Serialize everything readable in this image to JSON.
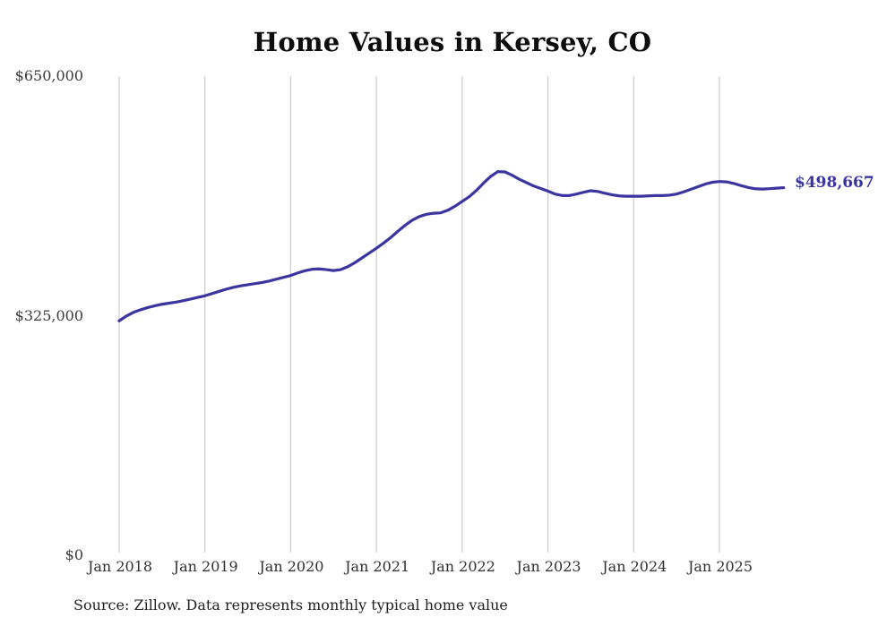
{
  "title": "Home Values in Kersey, CO",
  "source_note": "Source: Zillow. Data represents monthly typical home value",
  "colors": {
    "line": "#3b35a0",
    "end_label": "#3b35a0",
    "gridline": "#cccccc",
    "title": "#0d0d0d",
    "axis_label": "#2f2f2f",
    "background": "#ffffff"
  },
  "chart_data": {
    "type": "line",
    "title": "Home Values in Kersey, CO",
    "xlabel": "",
    "ylabel": "",
    "grid": "vertical-only",
    "legend": "none",
    "ylim": [
      0,
      650000
    ],
    "y_tick_labels": [
      "$0",
      "$325,000",
      "$650,000"
    ],
    "y_tick_values": [
      0,
      325000,
      650000
    ],
    "x_tick_labels": [
      "Jan 2018",
      "Jan 2019",
      "Jan 2020",
      "Jan 2021",
      "Jan 2022",
      "Jan 2023",
      "Jan 2024",
      "Jan 2025"
    ],
    "x_tick_month_indices": [
      0,
      12,
      24,
      36,
      48,
      60,
      72,
      84
    ],
    "x_start_month": "Jan 2018",
    "x_end_month": "Oct 2025",
    "end_label": "$498,667",
    "end_value": 498667,
    "series": [
      {
        "name": "Typical home value (monthly)",
        "monthly_values": [
          318000,
          324500,
          329500,
          333000,
          336000,
          338500,
          340500,
          342000,
          343500,
          345500,
          347500,
          349800,
          352000,
          355000,
          358000,
          361000,
          363500,
          365500,
          367000,
          368500,
          370000,
          372000,
          374500,
          377000,
          379500,
          383000,
          386000,
          388000,
          388500,
          387500,
          386200,
          387500,
          391500,
          397000,
          403500,
          410000,
          416500,
          423500,
          431000,
          439500,
          447500,
          454500,
          459500,
          462500,
          464000,
          464500,
          468000,
          473500,
          480000,
          486500,
          495000,
          505000,
          514000,
          520500,
          520000,
          515500,
          510000,
          505500,
          501000,
          497500,
          494000,
          490000,
          488000,
          488000,
          490000,
          492500,
          494500,
          493500,
          491000,
          489000,
          487500,
          487000,
          487000,
          487000,
          487500,
          488000,
          488000,
          488500,
          490000,
          493000,
          496500,
          500000,
          503500,
          506000,
          507000,
          506500,
          504500,
          501500,
          499000,
          497200,
          496800,
          497300,
          498000,
          498667
        ]
      }
    ]
  }
}
